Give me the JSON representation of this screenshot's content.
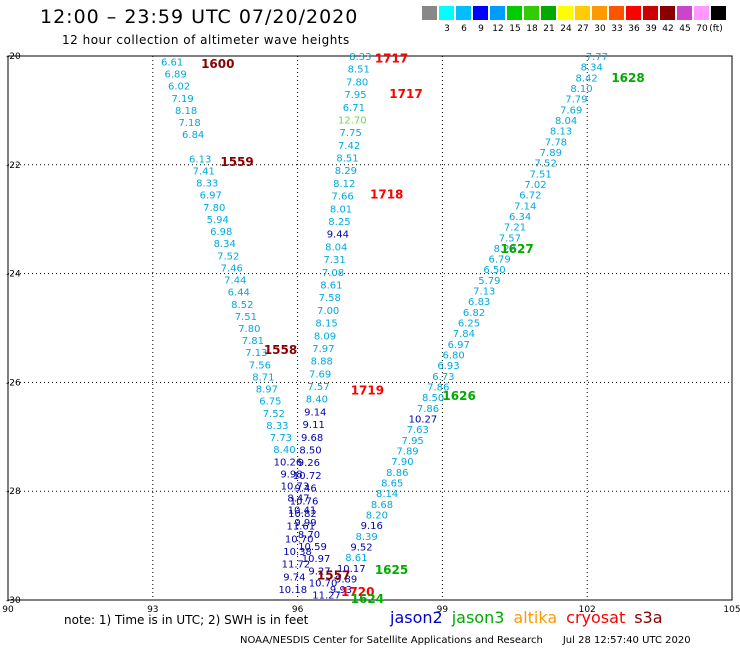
{
  "title": "12:00 – 23:59 UTC 07/20/2020",
  "subtitle": "12 hour collection of altimeter wave heights",
  "colorbar": {
    "unit": "(ft)",
    "labels": [
      "3",
      "6",
      "9",
      "12",
      "15",
      "18",
      "21",
      "24",
      "27",
      "30",
      "33",
      "36",
      "39",
      "42",
      "45",
      "70"
    ],
    "colors": [
      "#888888",
      "#00ffff",
      "#00bfff",
      "#0000ff",
      "#009cff",
      "#00cc00",
      "#33cc00",
      "#00aa00",
      "#ffff00",
      "#ffcc00",
      "#ff9900",
      "#ff5500",
      "#ff0000",
      "#cc0000",
      "#880000",
      "#cc44cc",
      "#ff99ff",
      "#000000"
    ]
  },
  "axes": {
    "x_ticks": [
      90,
      93,
      96,
      99,
      102,
      105
    ],
    "y_ticks": [
      -20,
      -22,
      -24,
      -26,
      -28,
      -30
    ],
    "x_range": [
      90,
      105
    ],
    "y_range": [
      -30,
      -20
    ]
  },
  "tracks": [
    {
      "x0": 93.4,
      "y0": -20.1,
      "x1": 96.6,
      "y1": -29.9,
      "color": "#00aadd",
      "size": 10,
      "values": [
        "6.61",
        "6.89",
        "6.02",
        "7.19",
        "8.18",
        "7.18",
        "6.84",
        "",
        "6.13",
        "7.41",
        "8.33",
        "6.97",
        "7.80",
        "5.94",
        "6.98",
        "8.34",
        "7.52",
        "7.46",
        "7.44",
        "6.44",
        "8.52",
        "7.51",
        "7.80",
        "7.81",
        "7.13",
        "7.56",
        "8.71",
        "8.97",
        "6.75",
        "7.52",
        "8.33",
        "7.73",
        "8.40",
        "10.26",
        "9.98",
        "10.73",
        "8.47",
        "10.41",
        "9.99",
        "8.70",
        "10.59",
        "10.97",
        "9.27",
        "10.70",
        "11.27"
      ],
      "dark_from": 33
    },
    {
      "x0": 97.3,
      "y0": -20.0,
      "x1": 95.9,
      "y1": -29.8,
      "color": "#00aadd",
      "size": 10,
      "values": [
        "8.33",
        "8.51",
        "7.80",
        "7.95",
        "6.71",
        "12.70",
        "7.75",
        "7.42",
        "8.51",
        "8.29",
        "8.12",
        "7.66",
        "8.01",
        "8.25",
        "9.44",
        "8.04",
        "7.31",
        "7.08",
        "8.61",
        "7.58",
        "7.00",
        "8.15",
        "8.09",
        "7.97",
        "8.88",
        "7.69",
        "7.57",
        "8.40",
        "9.14",
        "9.11",
        "9.68",
        "8.50",
        "9.26",
        "10.72",
        "9.46",
        "10.76",
        "10.82",
        "11.61",
        "10.70",
        "10.38",
        "11.72",
        "9.74",
        "10.18"
      ],
      "dark_from": 28,
      "dark_extra": [
        14
      ],
      "green": [
        5
      ]
    },
    {
      "x0": 102.2,
      "y0": -20.0,
      "x1": 96.9,
      "y1": -29.8,
      "color": "#00aadd",
      "size": 10,
      "values": [
        "7.77",
        "8.34",
        "8.42",
        "8.10",
        "7.79",
        "7.69",
        "8.04",
        "8.13",
        "7.78",
        "7.89",
        "7.52",
        "7.51",
        "7.02",
        "6.72",
        "7.14",
        "6.34",
        "7.21",
        "7.57",
        "8.22",
        "6.79",
        "6.50",
        "5.79",
        "7.13",
        "6.83",
        "6.82",
        "6.25",
        "7.84",
        "6.97",
        "6.80",
        "6.93",
        "6.73",
        "7.86",
        "8.50",
        "7.86",
        "10.27",
        "7.63",
        "7.95",
        "7.89",
        "7.90",
        "8.86",
        "8.65",
        "8.14",
        "8.68",
        "8.20",
        "9.16",
        "8.39",
        "9.52",
        "8.61",
        "10.17",
        "9.89",
        "9.93"
      ],
      "dark_from": 48,
      "dark_extra": [
        34,
        44,
        46
      ]
    }
  ],
  "pass_labels": [
    {
      "text": "1600",
      "lon": 94.0,
      "lat": -20.15,
      "color": "#880000"
    },
    {
      "text": "1559",
      "lon": 94.4,
      "lat": -21.95,
      "color": "#880000"
    },
    {
      "text": "1558",
      "lon": 95.3,
      "lat": -25.4,
      "color": "#880000"
    },
    {
      "text": "1557",
      "lon": 96.4,
      "lat": -29.55,
      "color": "#880000"
    },
    {
      "text": "1717",
      "lon": 97.6,
      "lat": -20.05,
      "color": "#ff0000"
    },
    {
      "text": "1717",
      "lon": 97.9,
      "lat": -20.7,
      "color": "#ff0000"
    },
    {
      "text": "1718",
      "lon": 97.5,
      "lat": -22.55,
      "color": "#ff0000"
    },
    {
      "text": "1719",
      "lon": 97.1,
      "lat": -26.15,
      "color": "#ff0000"
    },
    {
      "text": "1720",
      "lon": 96.9,
      "lat": -29.85,
      "color": "#ff0000"
    },
    {
      "text": "1628",
      "lon": 102.5,
      "lat": -20.4,
      "color": "#00aa00"
    },
    {
      "text": "1627",
      "lon": 100.2,
      "lat": -23.55,
      "color": "#00aa00"
    },
    {
      "text": "1626",
      "lon": 99.0,
      "lat": -26.25,
      "color": "#00aa00"
    },
    {
      "text": "1625",
      "lon": 97.6,
      "lat": -29.45,
      "color": "#00aa00"
    },
    {
      "text": "1624",
      "lon": 97.1,
      "lat": -29.98,
      "color": "#00aa00"
    }
  ],
  "note": "note:  1) Time is in UTC;  2) SWH is in feet",
  "legend": [
    {
      "name": "jason2",
      "color": "#0000cc"
    },
    {
      "name": "jason3",
      "color": "#00aa00"
    },
    {
      "name": "altika",
      "color": "#ff9900"
    },
    {
      "name": "cryosat",
      "color": "#ff0000"
    },
    {
      "name": "s3a",
      "color": "#880000"
    }
  ],
  "footer": "NOAA/NESDIS Center for Satellite Applications and Research",
  "timestamp": "Jul 28 12:57:40 UTC 2020"
}
